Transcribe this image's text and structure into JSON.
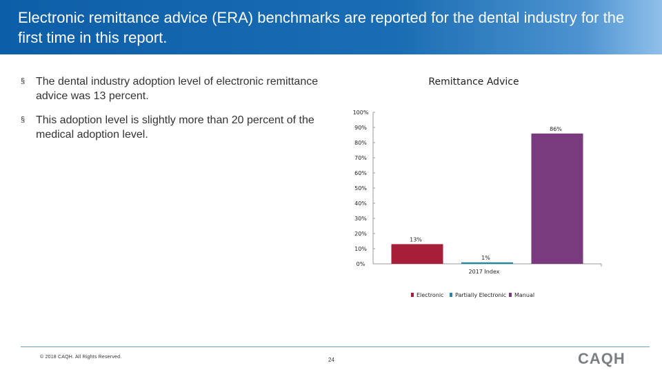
{
  "header": {
    "title": "Electronic remittance advice (ERA) benchmarks are reported for the dental industry for the first time in this report."
  },
  "bullets": [
    {
      "marker": "§",
      "text": "The dental industry adoption level of electronic remittance advice was 13 percent."
    },
    {
      "marker": "§",
      "text": "This adoption level is slightly more than 20 percent of the medical adoption level."
    }
  ],
  "chart_data": {
    "type": "bar",
    "title": "Remittance Advice",
    "categories": [
      "2017 Index"
    ],
    "xlabel": "",
    "ylabel": "",
    "ylim": [
      0,
      100
    ],
    "yticks": [
      0,
      10,
      20,
      30,
      40,
      50,
      60,
      70,
      80,
      90,
      100
    ],
    "ytick_labels": [
      "0%",
      "10%",
      "20%",
      "30%",
      "40%",
      "50%",
      "60%",
      "70%",
      "80%",
      "90%",
      "100%"
    ],
    "grid": false,
    "legend_position": "bottom",
    "series": [
      {
        "name": "Electronic",
        "values": [
          13
        ],
        "labels": [
          "13%"
        ],
        "color": "#a61e38"
      },
      {
        "name": "Partially Electronic",
        "values": [
          1
        ],
        "labels": [
          "1%"
        ],
        "color": "#1d8ba6"
      },
      {
        "name": "Manual",
        "values": [
          86
        ],
        "labels": [
          "86%"
        ],
        "color": "#7a3b7e"
      }
    ]
  },
  "footer": {
    "copyright": "© 2018 CAQH. All Rights Reserved.",
    "page_number": "24",
    "logo_text": "CAQH"
  }
}
